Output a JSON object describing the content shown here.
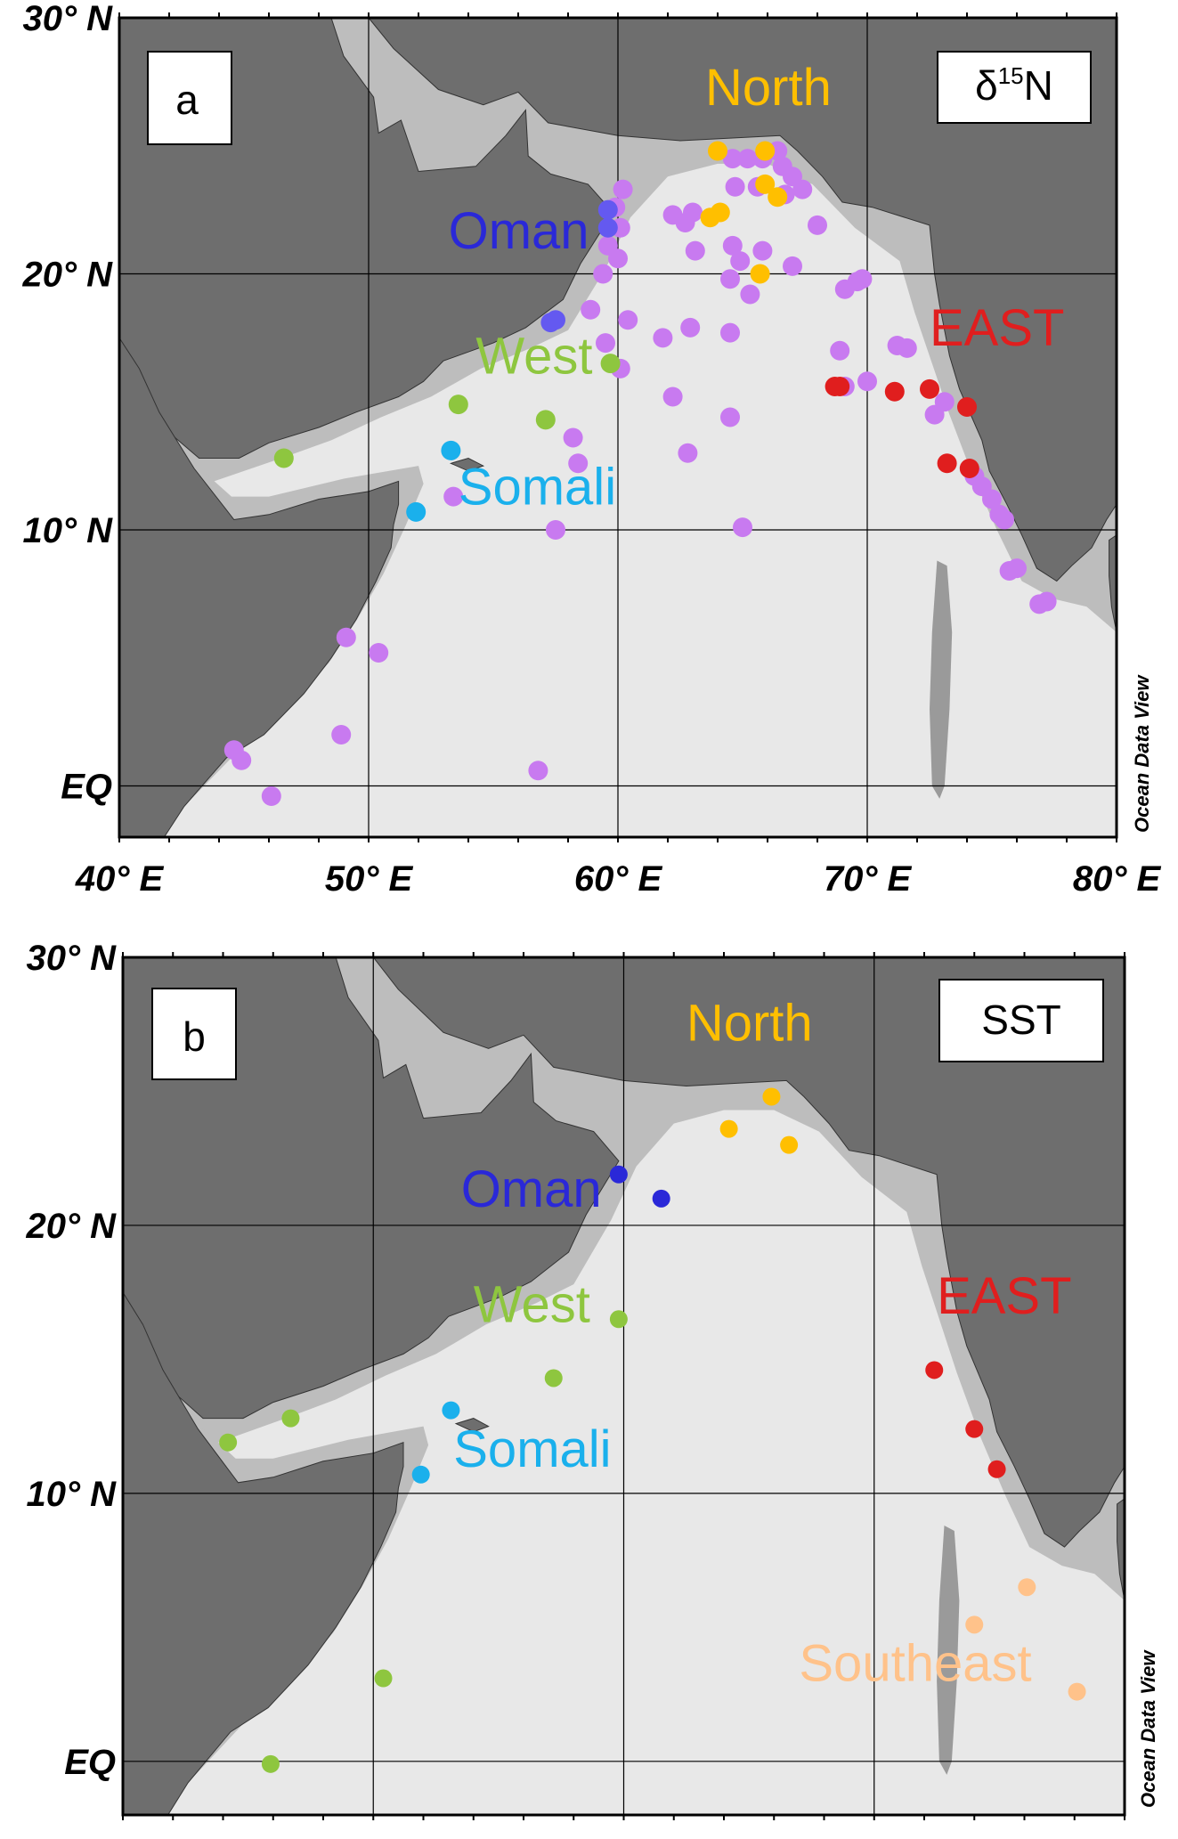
{
  "colors": {
    "land": "#6e6e6e",
    "ocean": "#e8e8e8",
    "shelf": "#bdbdbd",
    "North": "#ffbf00",
    "Oman": "#2a28d8",
    "West": "#8ec63f",
    "Somali": "#1ab0ec",
    "EAST": "#e01e1e",
    "Southeast": "#ffc28a",
    "other": "#c87af0",
    "oman_dot": "#6459f0"
  },
  "axes": {
    "lon_range": [
      40,
      80
    ],
    "lat_range": [
      -2,
      30
    ],
    "lon_ticks": [
      {
        "value": 40,
        "label": "40° E"
      },
      {
        "value": 50,
        "label": "50° E"
      },
      {
        "value": 60,
        "label": "60° E"
      },
      {
        "value": 70,
        "label": "70° E"
      },
      {
        "value": 80,
        "label": "80° E"
      }
    ],
    "lat_ticks": [
      {
        "value": 30,
        "label": "30° N"
      },
      {
        "value": 20,
        "label": "20° N"
      },
      {
        "value": 10,
        "label": "10° N"
      },
      {
        "value": 0,
        "label": "EQ"
      }
    ]
  },
  "credit": "Ocean Data View",
  "panels": [
    {
      "letter": "a",
      "variable": "δ15N",
      "regions": [
        {
          "name": "North",
          "color": "North"
        },
        {
          "name": "Oman",
          "color": "Oman"
        },
        {
          "name": "West",
          "color": "West"
        },
        {
          "name": "Somali",
          "color": "Somali"
        },
        {
          "name": "EAST",
          "color": "EAST"
        }
      ],
      "stations": {
        "other": [
          [
            64.6,
            24.5
          ],
          [
            65.2,
            24.5
          ],
          [
            65.8,
            24.5
          ],
          [
            66.4,
            24.8
          ],
          [
            66.6,
            24.2
          ],
          [
            67.0,
            23.8
          ],
          [
            67.4,
            23.3
          ],
          [
            66.7,
            23.1
          ],
          [
            65.6,
            23.4
          ],
          [
            64.7,
            23.4
          ],
          [
            63.0,
            22.4
          ],
          [
            62.2,
            22.3
          ],
          [
            62.7,
            22.0
          ],
          [
            60.2,
            23.3
          ],
          [
            59.9,
            22.6
          ],
          [
            60.1,
            21.8
          ],
          [
            59.6,
            21.1
          ],
          [
            60.0,
            20.6
          ],
          [
            59.4,
            20.0
          ],
          [
            58.9,
            18.6
          ],
          [
            59.5,
            17.3
          ],
          [
            60.4,
            18.2
          ],
          [
            61.8,
            17.5
          ],
          [
            62.9,
            17.9
          ],
          [
            64.5,
            17.7
          ],
          [
            63.1,
            20.9
          ],
          [
            64.6,
            21.1
          ],
          [
            64.9,
            20.5
          ],
          [
            64.5,
            19.8
          ],
          [
            65.3,
            19.2
          ],
          [
            65.8,
            20.9
          ],
          [
            67.0,
            20.3
          ],
          [
            68.0,
            21.9
          ],
          [
            69.1,
            19.4
          ],
          [
            69.6,
            19.7
          ],
          [
            69.8,
            19.8
          ],
          [
            68.9,
            17.0
          ],
          [
            69.1,
            15.6
          ],
          [
            70.0,
            15.8
          ],
          [
            71.2,
            17.2
          ],
          [
            71.6,
            17.1
          ],
          [
            72.7,
            14.5
          ],
          [
            73.1,
            15.0
          ],
          [
            74.3,
            12.1
          ],
          [
            74.6,
            11.7
          ],
          [
            75.0,
            11.2
          ],
          [
            75.3,
            10.6
          ],
          [
            75.5,
            10.4
          ],
          [
            75.7,
            8.4
          ],
          [
            76.0,
            8.5
          ],
          [
            76.9,
            7.1
          ],
          [
            77.2,
            7.2
          ],
          [
            58.2,
            13.6
          ],
          [
            58.4,
            12.6
          ],
          [
            60.1,
            16.3
          ],
          [
            62.2,
            15.2
          ],
          [
            62.8,
            13.0
          ],
          [
            64.5,
            14.4
          ],
          [
            65.0,
            10.1
          ],
          [
            57.5,
            10.0
          ],
          [
            53.4,
            11.3
          ],
          [
            49.1,
            5.8
          ],
          [
            50.4,
            5.2
          ],
          [
            48.9,
            2.0
          ],
          [
            44.6,
            1.4
          ],
          [
            44.9,
            1.0
          ],
          [
            46.1,
            -0.4
          ],
          [
            56.8,
            0.6
          ]
        ],
        "oman": [
          [
            57.3,
            18.1
          ],
          [
            57.5,
            18.2
          ],
          [
            59.6,
            21.8
          ],
          [
            59.6,
            22.5
          ]
        ],
        "North": [
          [
            64.0,
            24.8
          ],
          [
            65.9,
            24.8
          ],
          [
            63.7,
            22.2
          ],
          [
            64.1,
            22.4
          ],
          [
            65.9,
            23.5
          ],
          [
            66.4,
            23.0
          ],
          [
            65.7,
            20.0
          ]
        ],
        "West": [
          [
            46.6,
            12.8
          ],
          [
            53.6,
            14.9
          ],
          [
            57.1,
            14.3
          ],
          [
            59.7,
            16.5
          ]
        ],
        "Somali": [
          [
            53.3,
            13.1
          ],
          [
            51.9,
            10.7
          ]
        ],
        "EAST": [
          [
            68.7,
            15.6
          ],
          [
            68.9,
            15.6
          ],
          [
            71.1,
            15.4
          ],
          [
            72.5,
            15.5
          ],
          [
            74.0,
            14.8
          ],
          [
            73.2,
            12.6
          ],
          [
            74.1,
            12.4
          ]
        ]
      }
    },
    {
      "letter": "b",
      "variable": "SST",
      "regions": [
        {
          "name": "North",
          "color": "North"
        },
        {
          "name": "Oman",
          "color": "Oman"
        },
        {
          "name": "West",
          "color": "West"
        },
        {
          "name": "Somali",
          "color": "Somali"
        },
        {
          "name": "EAST",
          "color": "EAST"
        },
        {
          "name": "Southeast",
          "color": "Southeast"
        }
      ],
      "stations": {
        "North": [
          [
            65.9,
            24.8
          ],
          [
            64.2,
            23.6
          ],
          [
            66.6,
            23.0
          ]
        ],
        "Oman": [
          [
            59.8,
            21.9
          ],
          [
            61.5,
            21.0
          ]
        ],
        "West": [
          [
            59.8,
            16.5
          ],
          [
            57.2,
            14.3
          ],
          [
            46.7,
            12.8
          ],
          [
            44.2,
            11.9
          ],
          [
            50.4,
            3.1
          ],
          [
            45.9,
            -0.1
          ]
        ],
        "Somali": [
          [
            53.1,
            13.1
          ],
          [
            51.9,
            10.7
          ]
        ],
        "EAST": [
          [
            72.4,
            14.6
          ],
          [
            74.0,
            12.4
          ],
          [
            74.9,
            10.9
          ]
        ],
        "Southeast": [
          [
            76.1,
            6.5
          ],
          [
            74.0,
            5.1
          ],
          [
            78.1,
            2.6
          ]
        ]
      }
    }
  ]
}
